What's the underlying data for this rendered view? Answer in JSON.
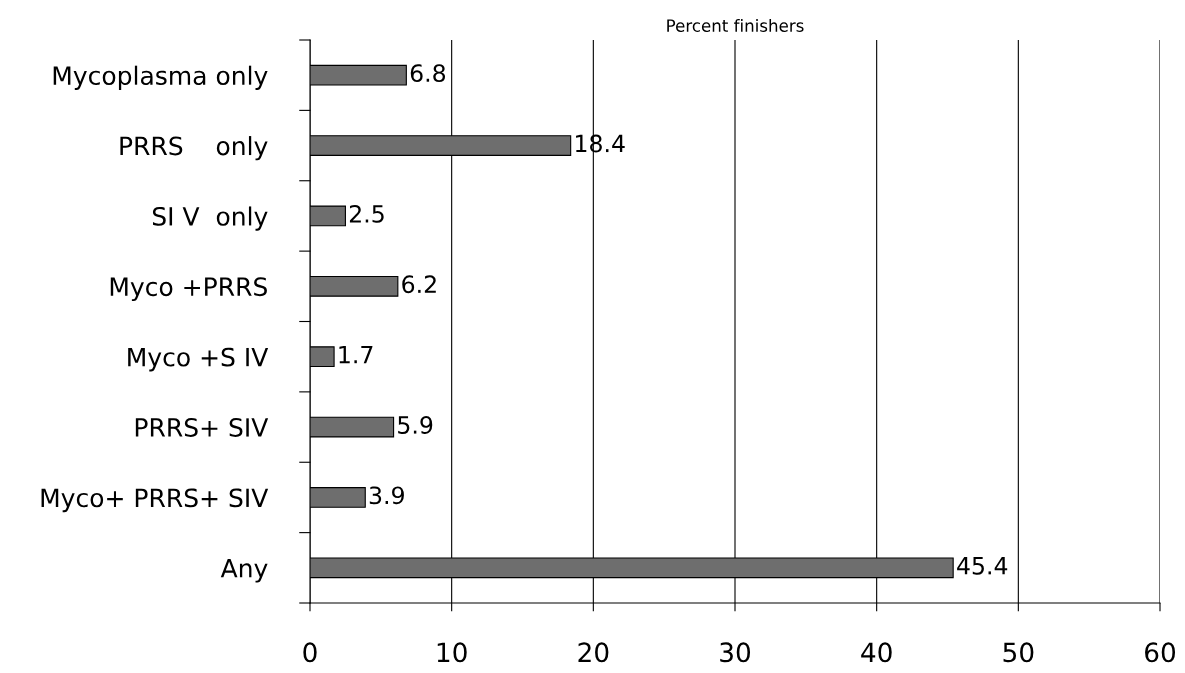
{
  "chart_data": {
    "type": "bar",
    "orientation": "horizontal",
    "title": "Percent finishers",
    "categories": [
      "Mycoplasma only",
      "PRRS    only",
      "SI V  only",
      "Myco +PRRS",
      "Myco +S IV",
      "PRRS+ SIV",
      "Myco+ PRRS+ SIV",
      "Any"
    ],
    "values": [
      6.8,
      18.4,
      2.5,
      6.2,
      1.7,
      5.9,
      3.9,
      45.4
    ],
    "color": "#6e6e6e",
    "xlim": [
      0,
      60
    ],
    "xticks": [
      0,
      10,
      20,
      30,
      40,
      50,
      60
    ],
    "grid": "x",
    "data_labels": true
  }
}
